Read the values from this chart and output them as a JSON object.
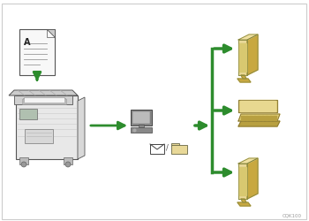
{
  "bg_color": "#ffffff",
  "border_color": "#cccccc",
  "arrow_color": "#2d8c2d",
  "caption": "CQK100",
  "cloud_fill": "#ffffff",
  "cloud_edge": "#333333",
  "paper_fill": "#f8f8f8",
  "paper_edge": "#555555",
  "fax_body_fill": "#e8e8e8",
  "fax_dark": "#cccccc",
  "fax_edge": "#555555",
  "monitor_front": "#e8d898",
  "monitor_side": "#c8a840",
  "monitor_top": "#f0e0a0",
  "monitor_screen": "#d8c870",
  "monitor_edge": "#888840",
  "laptop_body": "#dcc870",
  "laptop_side": "#b8a040",
  "laptop_screen_inner": "#e8d890",
  "laptop_edge": "#807030",
  "comp_gray": "#888888",
  "comp_light": "#bbbbbb",
  "env_fill": "#ffffff",
  "env_edge": "#444444",
  "folder_fill": "#e8d898",
  "folder_edge": "#666644"
}
